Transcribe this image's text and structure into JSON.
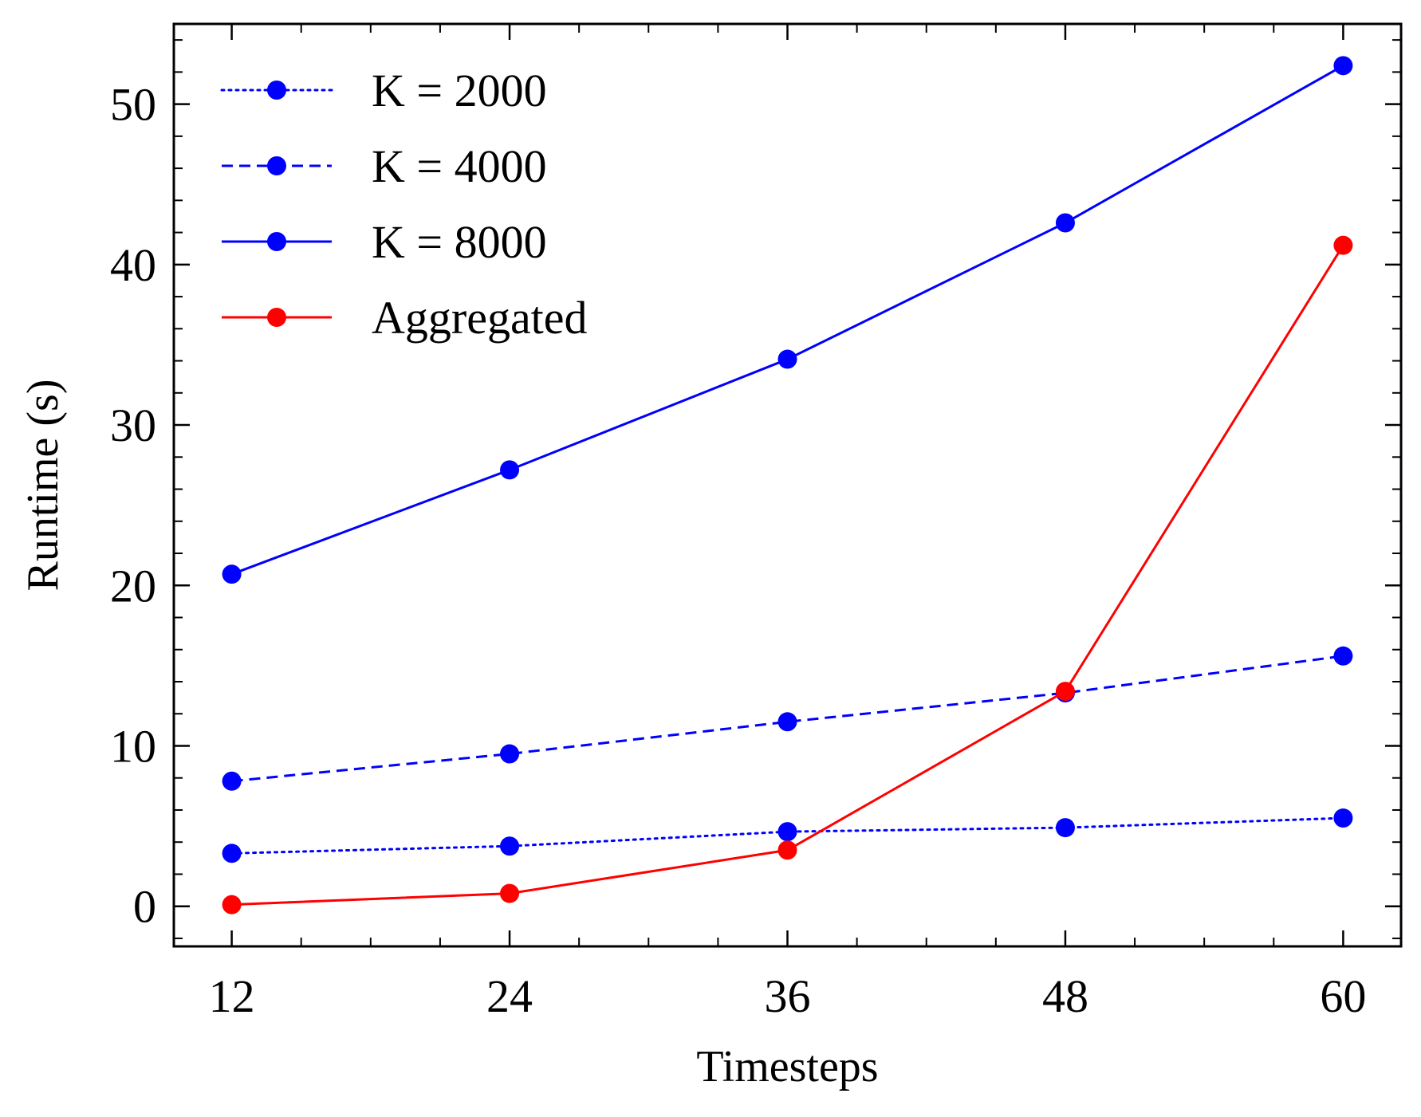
{
  "chart_data": {
    "type": "line",
    "title": "",
    "xlabel": "Timesteps",
    "ylabel": "Runtime (s)",
    "xlim": [
      9.5,
      62.5
    ],
    "ylim": [
      -2.5,
      55
    ],
    "x": [
      12,
      24,
      36,
      48,
      60
    ],
    "xticks": [
      12,
      24,
      36,
      48,
      60
    ],
    "xtick_labels": [
      "12",
      "24",
      "36",
      "48",
      "60"
    ],
    "xminor_step": 3,
    "yticks": [
      0,
      10,
      20,
      30,
      40,
      50
    ],
    "ytick_labels": [
      "0",
      "10",
      "20",
      "30",
      "40",
      "50"
    ],
    "yminor_step": 2,
    "grid": false,
    "legend_position": "top-left",
    "series": [
      {
        "name": "K = 2000",
        "label": "K = 2000",
        "color": "#0000ff",
        "linestyle": "dotted",
        "marker": "circle",
        "values": [
          3.3,
          3.75,
          4.65,
          4.9,
          5.5
        ]
      },
      {
        "name": "K = 4000",
        "label": "K = 4000",
        "color": "#0000ff",
        "linestyle": "dashed",
        "marker": "circle",
        "values": [
          7.8,
          9.5,
          11.5,
          13.3,
          15.6
        ]
      },
      {
        "name": "K = 8000",
        "label": "K = 8000",
        "color": "#0000ff",
        "linestyle": "solid",
        "marker": "circle",
        "values": [
          20.7,
          27.2,
          34.1,
          42.6,
          52.4
        ]
      },
      {
        "name": "Aggregated",
        "label": "Aggregated",
        "color": "#ff0000",
        "linestyle": "solid",
        "marker": "circle",
        "values": [
          0.1,
          0.8,
          3.5,
          13.4,
          41.2
        ]
      }
    ]
  }
}
